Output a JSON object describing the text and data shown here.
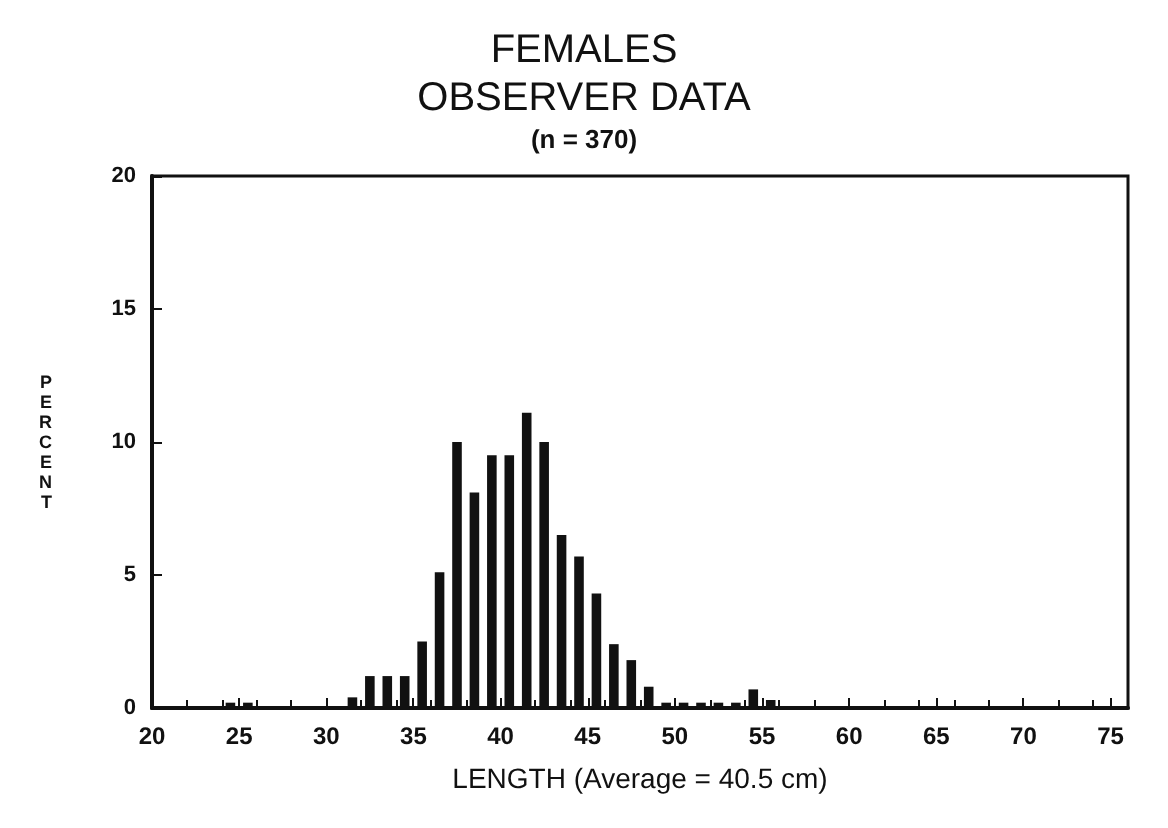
{
  "chart_data": {
    "type": "histogram",
    "title": "FEMALES\nOBSERVER DATA",
    "subtitle": "(n = 370)",
    "xlabel": "LENGTH (Average = 40.5 cm)",
    "ylabel": "PERCENT",
    "bins": [
      20,
      21,
      22,
      23,
      24,
      25,
      26,
      27,
      28,
      29,
      30,
      31,
      32,
      33,
      34,
      35,
      36,
      37,
      38,
      39,
      40,
      41,
      42,
      43,
      44,
      45,
      46,
      47,
      48,
      49,
      50,
      51,
      52,
      53,
      54,
      55,
      56,
      57,
      58,
      59,
      60,
      61,
      62,
      63,
      64,
      65,
      66,
      67,
      68,
      69,
      70,
      71,
      72,
      73,
      74,
      75,
      76
    ],
    "values": [
      0,
      0,
      0,
      0,
      0.2,
      0.2,
      0,
      0,
      0,
      0,
      0,
      0.4,
      1.2,
      1.2,
      1.2,
      2.5,
      5.1,
      10,
      8.1,
      9.5,
      9.5,
      11.1,
      10,
      6.5,
      5.7,
      4.3,
      2.4,
      1.8,
      0.8,
      0.2,
      0.2,
      0.2,
      0.2,
      0.2,
      0.7,
      0.3,
      0,
      0,
      0,
      0,
      0,
      0,
      0,
      0,
      0,
      0,
      0,
      0,
      0,
      0,
      0,
      0,
      0,
      0,
      0,
      0
    ],
    "color": "#111111",
    "xlim": [
      20,
      76
    ],
    "xticks": [
      20,
      25,
      30,
      35,
      40,
      45,
      50,
      55,
      60,
      65,
      70,
      75
    ],
    "ylim": [
      0,
      20
    ],
    "yticks": [
      0,
      5,
      10,
      15,
      20
    ],
    "grid": false
  }
}
